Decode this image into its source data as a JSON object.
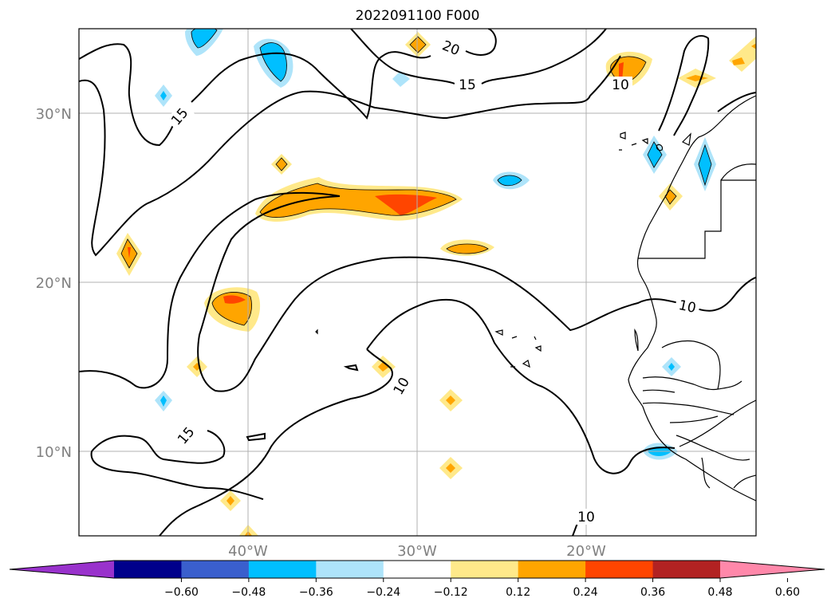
{
  "title": "2022091100 F000",
  "map": {
    "lat_labels": [
      "30°N",
      "20°N",
      "10°N"
    ],
    "lon_labels": [
      "40°W",
      "30°W",
      "20°W"
    ],
    "contour_labels": [
      "20",
      "15",
      "15",
      "10",
      "15",
      "10",
      "10",
      "10"
    ]
  },
  "colorbar": {
    "ticks": [
      "−0.60",
      "−0.48",
      "−0.36",
      "−0.24",
      "−0.12",
      "0.12",
      "0.24",
      "0.36",
      "0.48",
      "0.60"
    ],
    "colors": [
      "#9932cc",
      "#00008b",
      "#3a5fcd",
      "#00bfff",
      "#aee4fa",
      "#ffffff",
      "#ffe98a",
      "#ffa500",
      "#ff4500",
      "#b22222",
      "#ff88aa"
    ]
  }
}
